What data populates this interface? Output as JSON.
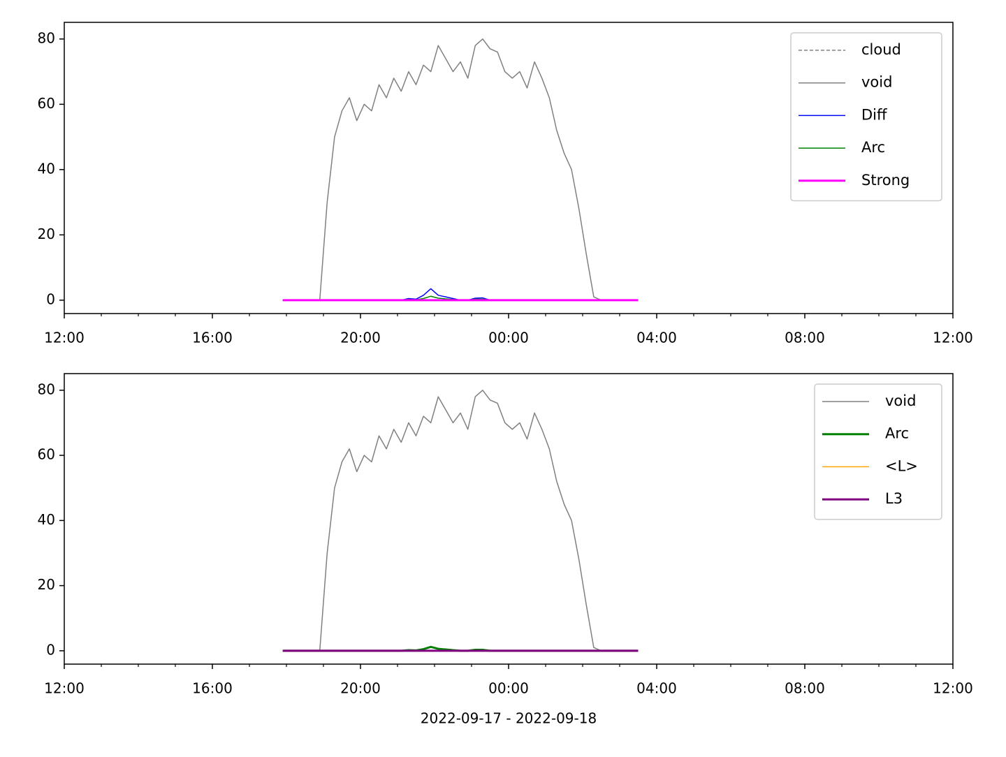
{
  "chart_data": [
    {
      "type": "line",
      "xlim": [
        0,
        24
      ],
      "ylim": [
        -4.1,
        85.1
      ],
      "xticks": [
        {
          "value": 0,
          "label": "12:00"
        },
        {
          "value": 4,
          "label": "16:00"
        },
        {
          "value": 8,
          "label": "20:00"
        },
        {
          "value": 12,
          "label": "00:00"
        },
        {
          "value": 16,
          "label": "04:00"
        },
        {
          "value": 20,
          "label": "08:00"
        },
        {
          "value": 24,
          "label": "12:00"
        }
      ],
      "xticks_minor": [
        1,
        2,
        3,
        5,
        6,
        7,
        9,
        10,
        11,
        13,
        14,
        15,
        17,
        18,
        19,
        21,
        22,
        23
      ],
      "yticks": [
        0,
        20,
        40,
        60,
        80
      ],
      "legend": "upper right",
      "x": [
        5.9,
        6.1,
        6.3,
        6.5,
        6.7,
        6.9,
        7.1,
        7.3,
        7.5,
        7.7,
        7.9,
        8.1,
        8.3,
        8.5,
        8.7,
        8.9,
        9.1,
        9.3,
        9.5,
        9.7,
        9.9,
        10.1,
        10.3,
        10.5,
        10.7,
        10.9,
        11.1,
        11.3,
        11.5,
        11.7,
        11.9,
        12.1,
        12.3,
        12.5,
        12.7,
        12.9,
        13.1,
        13.3,
        13.5,
        13.7,
        13.9,
        14.1,
        14.3,
        14.5,
        14.7,
        14.9,
        15.1,
        15.3,
        15.5
      ],
      "series": [
        {
          "name": "cloud",
          "color": "#808080",
          "linewidth": 1.5,
          "linestyle": "dashed",
          "values": [
            null,
            null,
            null,
            null,
            null,
            null,
            null,
            null,
            null,
            null,
            null,
            null,
            null,
            null,
            null,
            null,
            null,
            null,
            null,
            null,
            null,
            null,
            null,
            null,
            null,
            null,
            null,
            null,
            null,
            null,
            null,
            null,
            null,
            null,
            null,
            null,
            null,
            null,
            null,
            null,
            null,
            null,
            null,
            null,
            null,
            null,
            null,
            null,
            null
          ]
        },
        {
          "name": "void",
          "color": "#808080",
          "linewidth": 1.5,
          "values": [
            0,
            0,
            0,
            0,
            0,
            0,
            30,
            50,
            58,
            62,
            55,
            60,
            58,
            66,
            62,
            68,
            64,
            70,
            66,
            72,
            70,
            78,
            74,
            70,
            73,
            68,
            78,
            80,
            77,
            76,
            70,
            68,
            70,
            65,
            73,
            68,
            62,
            52,
            45,
            40,
            28,
            14,
            1,
            0,
            0,
            0,
            0,
            0,
            0
          ]
        },
        {
          "name": "Diff",
          "color": "#0000ff",
          "linewidth": 1.5,
          "values": [
            0,
            0,
            0,
            0,
            0,
            0,
            0,
            0,
            0,
            0,
            0,
            0,
            0,
            0,
            0,
            0,
            0,
            0.5,
            0.3,
            1.5,
            3.5,
            1.5,
            1,
            0.5,
            0,
            0,
            0.6,
            0.7,
            0,
            0,
            0,
            0,
            0,
            0,
            0,
            0,
            0,
            0,
            0,
            0,
            0,
            0,
            0,
            0,
            0,
            0,
            0,
            0,
            0
          ]
        },
        {
          "name": "Arc",
          "color": "#008000",
          "linewidth": 1.5,
          "values": [
            0,
            0,
            0,
            0,
            0,
            0,
            0,
            0,
            0,
            0,
            0,
            0,
            0,
            0,
            0,
            0,
            0,
            0.2,
            0.1,
            0.5,
            1.2,
            0.6,
            0.4,
            0.2,
            0,
            0,
            0.3,
            0.3,
            0,
            0,
            0,
            0,
            0,
            0,
            0,
            0,
            0,
            0,
            0,
            0,
            0,
            0,
            0,
            0,
            0,
            0,
            0,
            0,
            0
          ]
        },
        {
          "name": "Strong",
          "color": "#ff00ff",
          "linewidth": 3,
          "values": [
            0,
            0,
            0,
            0,
            0,
            0,
            0,
            0,
            0,
            0,
            0,
            0,
            0,
            0,
            0,
            0,
            0,
            0,
            0,
            0,
            0,
            0,
            0,
            0,
            0,
            0,
            0,
            0,
            0,
            0,
            0,
            0,
            0,
            0,
            0,
            0,
            0,
            0,
            0,
            0,
            0,
            0,
            0,
            0,
            0,
            0,
            0,
            0,
            0
          ]
        }
      ]
    },
    {
      "type": "line",
      "xlim": [
        0,
        24
      ],
      "ylim": [
        -4.1,
        85.1
      ],
      "xticks": [
        {
          "value": 0,
          "label": "12:00"
        },
        {
          "value": 4,
          "label": "16:00"
        },
        {
          "value": 8,
          "label": "20:00"
        },
        {
          "value": 12,
          "label": "00:00"
        },
        {
          "value": 16,
          "label": "04:00"
        },
        {
          "value": 20,
          "label": "08:00"
        },
        {
          "value": 24,
          "label": "12:00"
        }
      ],
      "xticks_minor": [
        1,
        2,
        3,
        5,
        6,
        7,
        9,
        10,
        11,
        13,
        14,
        15,
        17,
        18,
        19,
        21,
        22,
        23
      ],
      "yticks": [
        0,
        20,
        40,
        60,
        80
      ],
      "legend": "upper right",
      "xlabel": "2022-09-17 - 2022-09-18",
      "x": [
        5.9,
        6.1,
        6.3,
        6.5,
        6.7,
        6.9,
        7.1,
        7.3,
        7.5,
        7.7,
        7.9,
        8.1,
        8.3,
        8.5,
        8.7,
        8.9,
        9.1,
        9.3,
        9.5,
        9.7,
        9.9,
        10.1,
        10.3,
        10.5,
        10.7,
        10.9,
        11.1,
        11.3,
        11.5,
        11.7,
        11.9,
        12.1,
        12.3,
        12.5,
        12.7,
        12.9,
        13.1,
        13.3,
        13.5,
        13.7,
        13.9,
        14.1,
        14.3,
        14.5,
        14.7,
        14.9,
        15.1,
        15.3,
        15.5
      ],
      "series": [
        {
          "name": "void",
          "color": "#808080",
          "linewidth": 1.5,
          "values": [
            0,
            0,
            0,
            0,
            0,
            0,
            30,
            50,
            58,
            62,
            55,
            60,
            58,
            66,
            62,
            68,
            64,
            70,
            66,
            72,
            70,
            78,
            74,
            70,
            73,
            68,
            78,
            80,
            77,
            76,
            70,
            68,
            70,
            65,
            73,
            68,
            62,
            52,
            45,
            40,
            28,
            14,
            1,
            0,
            0,
            0,
            0,
            0,
            0
          ]
        },
        {
          "name": "Arc",
          "color": "#008000",
          "linewidth": 3,
          "values": [
            0,
            0,
            0,
            0,
            0,
            0,
            0,
            0,
            0,
            0,
            0,
            0,
            0,
            0,
            0,
            0,
            0,
            0.2,
            0.1,
            0.5,
            1.2,
            0.6,
            0.4,
            0.2,
            0,
            0,
            0.3,
            0.3,
            0,
            0,
            0,
            0,
            0,
            0,
            0,
            0,
            0,
            0,
            0,
            0,
            0,
            0,
            0,
            0,
            0,
            0,
            0,
            0,
            0
          ]
        },
        {
          "name": "<L>",
          "color": "#ffa500",
          "linewidth": 1.5,
          "values": [
            0,
            0,
            0,
            0,
            0,
            0,
            0,
            0,
            0,
            0,
            0,
            0,
            0,
            0,
            0,
            0,
            0,
            0,
            0,
            0,
            0,
            0,
            0,
            0,
            0,
            0,
            0,
            0,
            0,
            0,
            0,
            0,
            0,
            0,
            0,
            0,
            0,
            0,
            0,
            0,
            0,
            0,
            0,
            0,
            0,
            0,
            0,
            0,
            0
          ]
        },
        {
          "name": "L3",
          "color": "#800080",
          "linewidth": 3,
          "values": [
            0,
            0,
            0,
            0,
            0,
            0,
            0,
            0,
            0,
            0,
            0,
            0,
            0,
            0,
            0,
            0,
            0,
            0,
            0,
            0,
            0,
            0,
            0,
            0,
            0,
            0,
            0,
            0,
            0,
            0,
            0,
            0,
            0,
            0,
            0,
            0,
            0,
            0,
            0,
            0,
            0,
            0,
            0,
            0,
            0,
            0,
            0,
            0,
            0
          ]
        }
      ]
    }
  ]
}
